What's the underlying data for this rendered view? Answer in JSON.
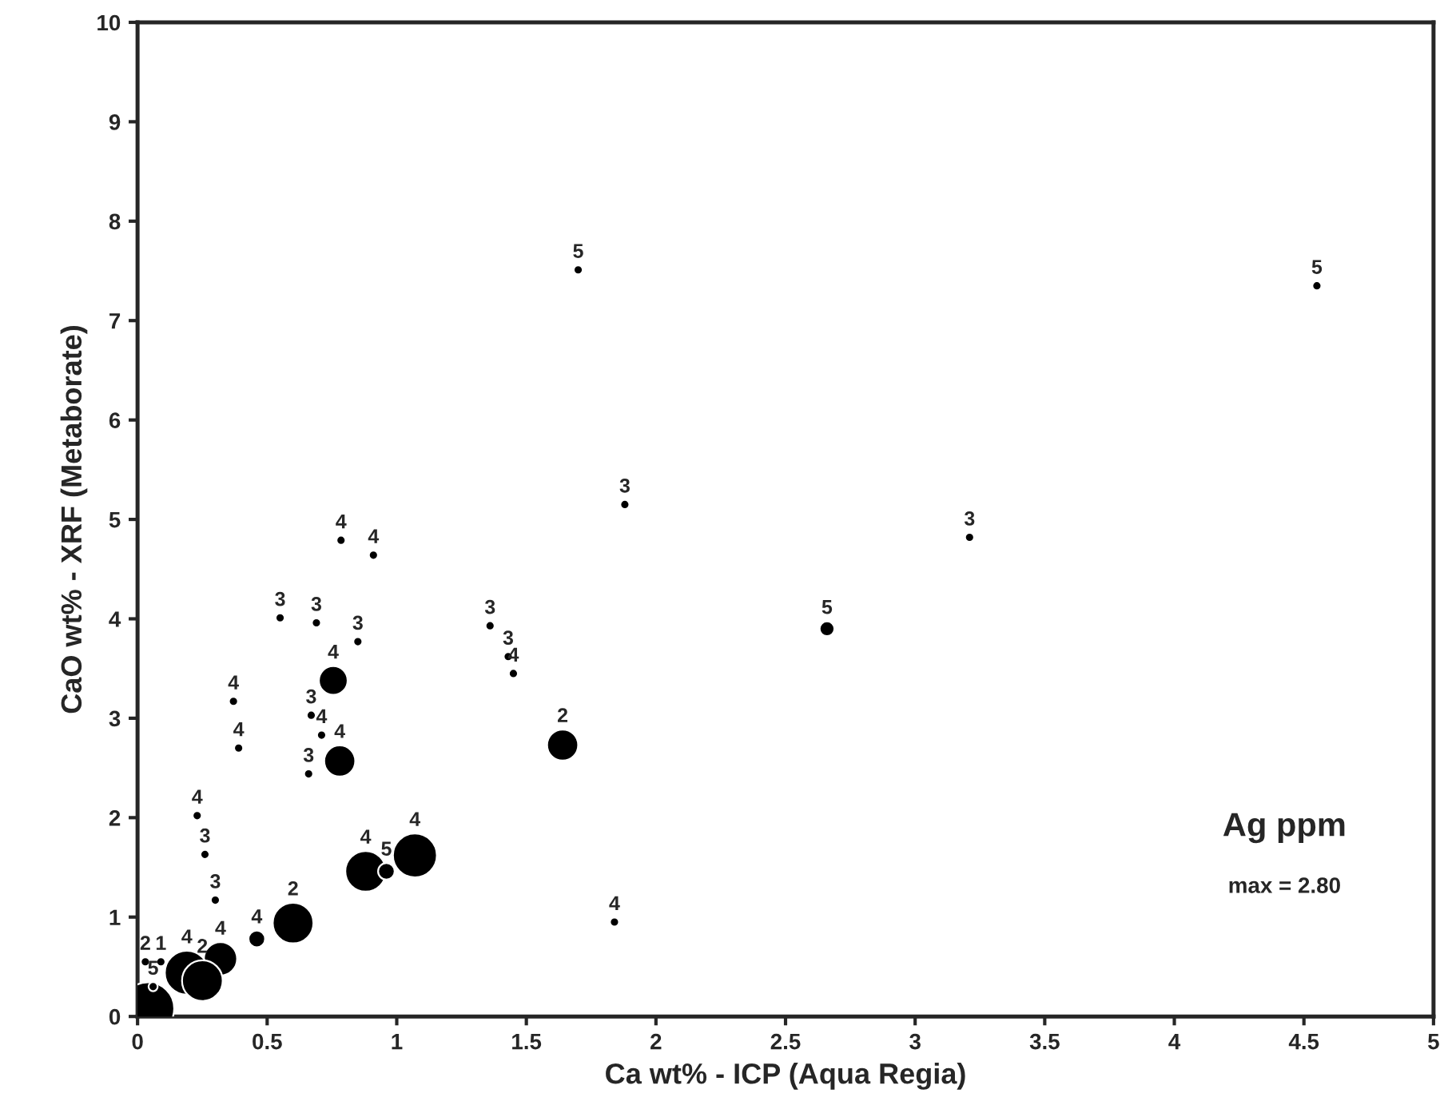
{
  "chart_data": {
    "type": "bubble",
    "xlabel": "Ca wt% - ICP (Aqua Regia)",
    "ylabel": "CaO wt% - XRF (Metaborate)",
    "series": [
      {
        "color": "#000000",
        "x": [
          1.7,
          4.55,
          1.88,
          3.21,
          2.66,
          1.36,
          1.43,
          1.45,
          1.64,
          1.84,
          0.785,
          0.91,
          0.55,
          0.69,
          0.85,
          0.755,
          0.37,
          0.39,
          0.67,
          0.71,
          0.78,
          0.66,
          0.23,
          0.26,
          0.3,
          0.32,
          0.46,
          0.6,
          0.88,
          0.96,
          1.07,
          0.19,
          0.25,
          0.04,
          0.03,
          0.09,
          0.06
        ],
        "values": [
          7.51,
          7.35,
          5.15,
          4.82,
          3.9,
          3.93,
          3.62,
          3.45,
          2.73,
          0.95,
          4.79,
          4.64,
          4.01,
          3.96,
          3.77,
          3.38,
          3.17,
          2.7,
          3.03,
          2.83,
          2.57,
          2.44,
          2.02,
          1.63,
          1.17,
          0.58,
          0.78,
          0.94,
          1.46,
          1.46,
          1.62,
          0.44,
          0.36,
          0.08,
          0.55,
          0.55,
          0.3
        ],
        "sizes": [
          0.03,
          0.03,
          0.03,
          0.03,
          0.08,
          0.03,
          0.03,
          0.03,
          0.35,
          0.03,
          0.03,
          0.03,
          0.03,
          0.03,
          0.03,
          0.3,
          0.03,
          0.03,
          0.03,
          0.03,
          0.35,
          0.03,
          0.03,
          0.03,
          0.03,
          0.4,
          0.1,
          0.6,
          0.6,
          0.1,
          0.7,
          0.7,
          0.6,
          1.0,
          0.03,
          0.03,
          0.03
        ]
      }
    ],
    "annotations": [
      {
        "text": "5",
        "x": 1.7,
        "y": 7.51
      },
      {
        "text": "5",
        "x": 4.55,
        "y": 7.35
      },
      {
        "text": "3",
        "x": 1.88,
        "y": 5.15
      },
      {
        "text": "3",
        "x": 3.21,
        "y": 4.82
      },
      {
        "text": "5",
        "x": 2.66,
        "y": 3.9
      },
      {
        "text": "3",
        "x": 1.36,
        "y": 3.93
      },
      {
        "text": "3",
        "x": 1.43,
        "y": 3.62
      },
      {
        "text": "4",
        "x": 1.45,
        "y": 3.45
      },
      {
        "text": "2",
        "x": 1.64,
        "y": 2.73
      },
      {
        "text": "4",
        "x": 1.84,
        "y": 0.95
      },
      {
        "text": "4",
        "x": 0.785,
        "y": 4.79
      },
      {
        "text": "4",
        "x": 0.91,
        "y": 4.64
      },
      {
        "text": "3",
        "x": 0.55,
        "y": 4.01
      },
      {
        "text": "3",
        "x": 0.69,
        "y": 3.96
      },
      {
        "text": "3",
        "x": 0.85,
        "y": 3.77
      },
      {
        "text": "4",
        "x": 0.755,
        "y": 3.38
      },
      {
        "text": "4",
        "x": 0.37,
        "y": 3.17
      },
      {
        "text": "4",
        "x": 0.39,
        "y": 2.7
      },
      {
        "text": "3",
        "x": 0.67,
        "y": 3.03
      },
      {
        "text": "4",
        "x": 0.71,
        "y": 2.83
      },
      {
        "text": "4",
        "x": 0.78,
        "y": 2.57
      },
      {
        "text": "3",
        "x": 0.66,
        "y": 2.44
      },
      {
        "text": "4",
        "x": 0.23,
        "y": 2.02
      },
      {
        "text": "3",
        "x": 0.26,
        "y": 1.63
      },
      {
        "text": "3",
        "x": 0.3,
        "y": 1.17
      },
      {
        "text": "4",
        "x": 0.32,
        "y": 0.58
      },
      {
        "text": "4",
        "x": 0.46,
        "y": 0.78
      },
      {
        "text": "2",
        "x": 0.6,
        "y": 0.94
      },
      {
        "text": "4",
        "x": 0.88,
        "y": 1.46
      },
      {
        "text": "5",
        "x": 0.96,
        "y": 1.46
      },
      {
        "text": "4",
        "x": 1.07,
        "y": 1.62
      },
      {
        "text": "4",
        "x": 0.19,
        "y": 0.44
      },
      {
        "text": "2",
        "x": 0.25,
        "y": 0.36
      },
      {
        "text": "2",
        "x": 0.03,
        "y": 0.55
      },
      {
        "text": "1",
        "x": 0.09,
        "y": 0.55
      },
      {
        "text": "5",
        "x": 0.06,
        "y": 0.3
      },
      "Ag ppm",
      "max = 2.80"
    ],
    "xlim": [
      0,
      5
    ],
    "xticks": [
      0,
      0.5,
      1,
      1.5,
      2,
      2.5,
      3,
      3.5,
      4,
      4.5,
      5
    ],
    "ylim": [
      0,
      10
    ],
    "yticks": [
      0,
      1,
      2,
      3,
      4,
      5,
      6,
      7,
      8,
      9,
      10
    ],
    "grid": false,
    "legend": false
  }
}
